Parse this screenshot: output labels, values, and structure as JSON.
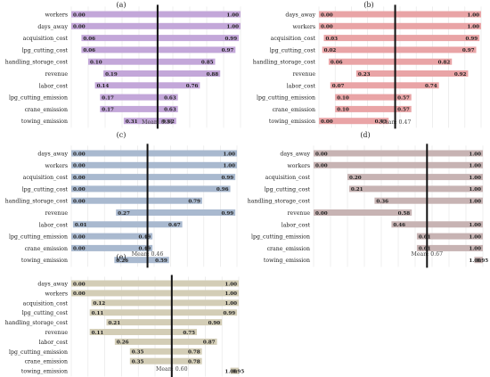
{
  "chart_data": [
    {
      "type": "bar",
      "panel_label": "(a)",
      "mean_label": "Mean: 0.51",
      "mean": 0.51,
      "xlim": [
        0,
        1
      ],
      "bar_color": "#c3a7d9",
      "categories": [
        "workers",
        "days_away",
        "acquisition_cost",
        "lpg_cutting_cost",
        "handling_storage_cost",
        "revenue",
        "labor_cost",
        "lpg_cutting_emission",
        "crane_emission",
        "towing_emission"
      ],
      "low": [
        0.0,
        0.0,
        0.06,
        0.06,
        0.1,
        0.19,
        0.14,
        0.17,
        0.17,
        0.31
      ],
      "high": [
        1.0,
        1.0,
        0.99,
        0.97,
        0.85,
        0.88,
        0.76,
        0.63,
        0.63,
        0.62
      ],
      "low_labels": [
        "0.00",
        "0.00",
        "0.06",
        "0.06",
        "0.10",
        "0.19",
        "0.14",
        "0.17",
        "0.17",
        "0.31"
      ],
      "high_labels": [
        "1.00",
        "1.00",
        "0.99",
        "0.97",
        "0.85",
        "0.88",
        "0.76",
        "0.63",
        "0.63",
        "0.62"
      ]
    },
    {
      "type": "bar",
      "panel_label": "(b)",
      "mean_label": "Mean: 0.47",
      "mean": 0.47,
      "xlim": [
        0,
        1
      ],
      "bar_color": "#e9a4a6",
      "categories": [
        "days_away",
        "workers",
        "acquisition_cost",
        "lpg_cutting_cost",
        "handling_storage_cost",
        "revenue",
        "labor_cost",
        "lpg_cutting_emission",
        "crane_emission",
        "towing_emission"
      ],
      "low": [
        0.0,
        0.0,
        0.03,
        0.02,
        0.06,
        0.23,
        0.07,
        0.1,
        0.1,
        0.0
      ],
      "high": [
        1.0,
        1.0,
        0.99,
        0.97,
        0.82,
        0.92,
        0.74,
        0.57,
        0.57,
        0.43
      ],
      "low_labels": [
        "0.00",
        "0.00",
        "0.03",
        "0.02",
        "0.06",
        "0.23",
        "0.07",
        "0.10",
        "0.10",
        "0.00"
      ],
      "high_labels": [
        "1.00",
        "1.00",
        "0.99",
        "0.97",
        "0.82",
        "0.92",
        "0.74",
        "0.57",
        "0.57",
        "0.43"
      ]
    },
    {
      "type": "bar",
      "panel_label": "(c)",
      "mean_label": "Mean: 0.46",
      "mean": 0.46,
      "xlim": [
        0,
        1
      ],
      "bar_color": "#a9b9cf",
      "categories": [
        "days_away",
        "workers",
        "acquisition_cost",
        "lpg_cutting_cost",
        "handling_storage_cost",
        "revenue",
        "labor_cost",
        "lpg_cutting_emission",
        "crane_emission",
        "towing_emission"
      ],
      "low": [
        0.0,
        0.0,
        0.0,
        0.0,
        0.0,
        0.27,
        0.01,
        0.0,
        0.0,
        0.26
      ],
      "high": [
        1.0,
        1.0,
        0.99,
        0.96,
        0.79,
        0.99,
        0.67,
        0.49,
        0.49,
        0.59
      ],
      "low_labels": [
        "0.00",
        "0.00",
        "0.00",
        "0.00",
        "0.00",
        "0.27",
        "0.01",
        "0.00",
        "0.00",
        "0.26"
      ],
      "high_labels": [
        "1.00",
        "1.00",
        "0.99",
        "0.96",
        "0.79",
        "0.99",
        "0.67",
        "0.49",
        "0.49",
        "0.59"
      ]
    },
    {
      "type": "bar",
      "panel_label": "(d)",
      "mean_label": "Mean: 0.67",
      "mean": 0.67,
      "xlim": [
        0,
        1
      ],
      "bar_color": "#c7b3b3",
      "categories": [
        "days_away",
        "workers",
        "acquisition_cost",
        "lpg_cutting_cost",
        "handling_storage_cost",
        "revenue",
        "labor_cost",
        "lpg_cutting_emission",
        "crane_emission",
        "towing_emission"
      ],
      "low": [
        0.0,
        0.0,
        0.2,
        0.21,
        0.36,
        0.0,
        0.46,
        0.61,
        0.61,
        0.95
      ],
      "high": [
        1.0,
        1.0,
        1.0,
        1.0,
        1.0,
        0.58,
        1.0,
        1.0,
        1.0,
        1.0
      ],
      "low_labels": [
        "0.00",
        "0.00",
        "0.20",
        "0.21",
        "0.36",
        "0.00",
        "0.46",
        "0.61",
        "0.61",
        "0.95"
      ],
      "high_labels": [
        "1.00",
        "1.00",
        "1.00",
        "1.00",
        "1.00",
        "0.58",
        "1.00",
        "1.00",
        "1.00",
        "1.00"
      ]
    },
    {
      "type": "bar",
      "panel_label": "(e)",
      "mean_label": "Mean: 0.60",
      "mean": 0.6,
      "xlim": [
        0,
        1
      ],
      "bar_color": "#d3cdb6",
      "categories": [
        "days_away",
        "workers",
        "acquisition_cost",
        "lpg_cutting_cost",
        "handling_storage_cost",
        "revenue",
        "labor_cost",
        "lpg_cutting_emission",
        "crane_emission",
        "towing_emission"
      ],
      "low": [
        0.0,
        0.0,
        0.12,
        0.11,
        0.21,
        0.11,
        0.26,
        0.35,
        0.35,
        0.95
      ],
      "high": [
        1.0,
        1.0,
        1.0,
        0.99,
        0.9,
        0.75,
        0.87,
        0.78,
        0.78,
        1.0
      ],
      "low_labels": [
        "0.00",
        "0.00",
        "0.12",
        "0.11",
        "0.21",
        "0.11",
        "0.26",
        "0.35",
        "0.35",
        "0.95"
      ],
      "high_labels": [
        "1.00",
        "1.00",
        "1.00",
        "0.99",
        "0.90",
        "0.75",
        "0.87",
        "0.78",
        "0.78",
        "1.00"
      ]
    }
  ]
}
